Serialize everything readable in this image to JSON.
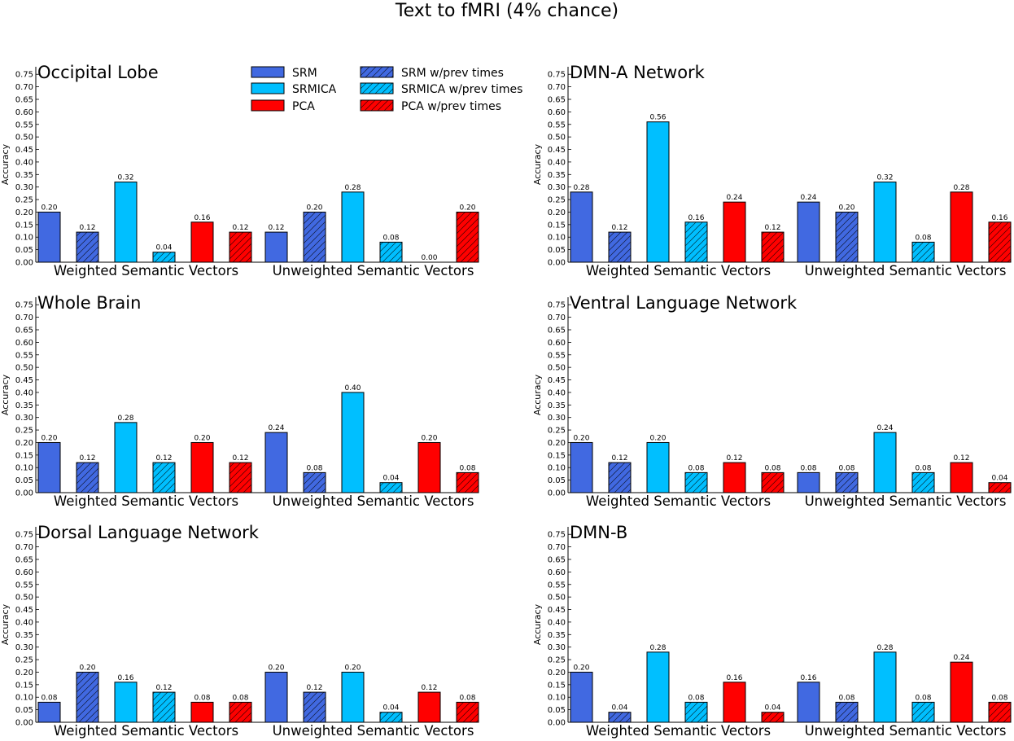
{
  "figure_title": "Text to fMRI (4% chance)",
  "colors": {
    "srm": "#4169e1",
    "srmica": "#00bfff",
    "pca": "#ff0000"
  },
  "legend": {
    "placement": "top of first panel, centered-right",
    "entries": [
      {
        "label": "SRM",
        "series": "SRM",
        "hatch": false
      },
      {
        "label": "SRMICA",
        "series": "SRMICA",
        "hatch": false
      },
      {
        "label": "PCA",
        "series": "PCA",
        "hatch": false
      },
      {
        "label": "SRM w/prev times",
        "series": "SRM",
        "hatch": true
      },
      {
        "label": "SRMICA w/prev times",
        "series": "SRMICA",
        "hatch": true
      },
      {
        "label": "PCA w/prev times",
        "series": "PCA",
        "hatch": true
      }
    ]
  },
  "chart_data": [
    {
      "type": "bar",
      "title": "Occipital Lobe",
      "ylabel": "Accuracy",
      "ylim": [
        0,
        0.78
      ],
      "yticks": [
        "0.00",
        "0.05",
        "0.10",
        "0.15",
        "0.20",
        "0.25",
        "0.30",
        "0.35",
        "0.40",
        "0.45",
        "0.50",
        "0.55",
        "0.60",
        "0.65",
        "0.70",
        "0.75"
      ],
      "groups": [
        "Weighted Semantic Vectors",
        "Unweighted Semantic Vectors"
      ],
      "series_order": [
        "SRM",
        "SRM w/prev times",
        "SRMICA",
        "SRMICA w/prev times",
        "PCA",
        "PCA w/prev times"
      ],
      "values": [
        [
          0.2,
          0.12,
          0.32,
          0.04,
          0.16,
          0.12
        ],
        [
          0.12,
          0.2,
          0.28,
          0.08,
          0.0,
          0.2
        ]
      ],
      "labels": [
        [
          "0.20",
          "0.12",
          "0.32",
          "0.04",
          "0.16",
          "0.12"
        ],
        [
          "0.12",
          "0.20",
          "0.28",
          "0.08",
          "0.00",
          "0.20"
        ]
      ]
    },
    {
      "type": "bar",
      "title": "DMN-A Network",
      "ylabel": "Accuracy",
      "ylim": [
        0,
        0.78
      ],
      "yticks": [
        "0.00",
        "0.05",
        "0.10",
        "0.15",
        "0.20",
        "0.25",
        "0.30",
        "0.35",
        "0.40",
        "0.45",
        "0.50",
        "0.55",
        "0.60",
        "0.65",
        "0.70",
        "0.75"
      ],
      "groups": [
        "Weighted Semantic Vectors",
        "Unweighted Semantic Vectors"
      ],
      "series_order": [
        "SRM",
        "SRM w/prev times",
        "SRMICA",
        "SRMICA w/prev times",
        "PCA",
        "PCA w/prev times"
      ],
      "values": [
        [
          0.28,
          0.12,
          0.56,
          0.16,
          0.24,
          0.12
        ],
        [
          0.24,
          0.2,
          0.32,
          0.08,
          0.28,
          0.16
        ]
      ],
      "labels": [
        [
          "0.28",
          "0.12",
          "0.56",
          "0.16",
          "0.24",
          "0.12"
        ],
        [
          "0.24",
          "0.20",
          "0.32",
          "0.08",
          "0.28",
          "0.16"
        ]
      ]
    },
    {
      "type": "bar",
      "title": "Whole Brain",
      "ylabel": "Accuracy",
      "ylim": [
        0,
        0.78
      ],
      "yticks": [
        "0.00",
        "0.05",
        "0.10",
        "0.15",
        "0.20",
        "0.25",
        "0.30",
        "0.35",
        "0.40",
        "0.45",
        "0.50",
        "0.55",
        "0.60",
        "0.65",
        "0.70",
        "0.75"
      ],
      "groups": [
        "Weighted Semantic Vectors",
        "Unweighted Semantic Vectors"
      ],
      "series_order": [
        "SRM",
        "SRM w/prev times",
        "SRMICA",
        "SRMICA w/prev times",
        "PCA",
        "PCA w/prev times"
      ],
      "values": [
        [
          0.2,
          0.12,
          0.28,
          0.12,
          0.2,
          0.12
        ],
        [
          0.24,
          0.08,
          0.4,
          0.04,
          0.2,
          0.08
        ]
      ],
      "labels": [
        [
          "0.20",
          "0.12",
          "0.28",
          "0.12",
          "0.20",
          "0.12"
        ],
        [
          "0.24",
          "0.08",
          "0.40",
          "0.04",
          "0.20",
          "0.08"
        ]
      ]
    },
    {
      "type": "bar",
      "title": "Ventral Language Network",
      "ylabel": "Accuracy",
      "ylim": [
        0,
        0.78
      ],
      "yticks": [
        "0.00",
        "0.05",
        "0.10",
        "0.15",
        "0.20",
        "0.25",
        "0.30",
        "0.35",
        "0.40",
        "0.45",
        "0.50",
        "0.55",
        "0.60",
        "0.65",
        "0.70",
        "0.75"
      ],
      "groups": [
        "Weighted Semantic Vectors",
        "Unweighted Semantic Vectors"
      ],
      "series_order": [
        "SRM",
        "SRM w/prev times",
        "SRMICA",
        "SRMICA w/prev times",
        "PCA",
        "PCA w/prev times"
      ],
      "values": [
        [
          0.2,
          0.12,
          0.2,
          0.08,
          0.12,
          0.08
        ],
        [
          0.08,
          0.08,
          0.24,
          0.08,
          0.12,
          0.04
        ]
      ],
      "labels": [
        [
          "0.20",
          "0.12",
          "0.20",
          "0.08",
          "0.12",
          "0.08"
        ],
        [
          "0.08",
          "0.08",
          "0.24",
          "0.08",
          "0.12",
          "0.04"
        ]
      ]
    },
    {
      "type": "bar",
      "title": "Dorsal Language Network",
      "ylabel": "Accuracy",
      "ylim": [
        0,
        0.78
      ],
      "yticks": [
        "0.00",
        "0.05",
        "0.10",
        "0.15",
        "0.20",
        "0.25",
        "0.30",
        "0.35",
        "0.40",
        "0.45",
        "0.50",
        "0.55",
        "0.60",
        "0.65",
        "0.70",
        "0.75"
      ],
      "groups": [
        "Weighted Semantic Vectors",
        "Unweighted Semantic Vectors"
      ],
      "series_order": [
        "SRM",
        "SRM w/prev times",
        "SRMICA",
        "SRMICA w/prev times",
        "PCA",
        "PCA w/prev times"
      ],
      "values": [
        [
          0.08,
          0.2,
          0.16,
          0.12,
          0.08,
          0.08
        ],
        [
          0.2,
          0.12,
          0.2,
          0.04,
          0.12,
          0.08
        ]
      ],
      "labels": [
        [
          "0.08",
          "0.20",
          "0.16",
          "0.12",
          "0.08",
          "0.08"
        ],
        [
          "0.20",
          "0.12",
          "0.20",
          "0.04",
          "0.12",
          "0.08"
        ]
      ]
    },
    {
      "type": "bar",
      "title": "DMN-B",
      "ylabel": "Accuracy",
      "ylim": [
        0,
        0.78
      ],
      "yticks": [
        "0.00",
        "0.05",
        "0.10",
        "0.15",
        "0.20",
        "0.25",
        "0.30",
        "0.35",
        "0.40",
        "0.45",
        "0.50",
        "0.55",
        "0.60",
        "0.65",
        "0.70",
        "0.75"
      ],
      "groups": [
        "Weighted Semantic Vectors",
        "Unweighted Semantic Vectors"
      ],
      "series_order": [
        "SRM",
        "SRM w/prev times",
        "SRMICA",
        "SRMICA w/prev times",
        "PCA",
        "PCA w/prev times"
      ],
      "values": [
        [
          0.2,
          0.04,
          0.28,
          0.08,
          0.16,
          0.04
        ],
        [
          0.16,
          0.08,
          0.28,
          0.08,
          0.24,
          0.08
        ]
      ],
      "labels": [
        [
          "0.20",
          "0.04",
          "0.28",
          "0.08",
          "0.16",
          "0.04"
        ],
        [
          "0.16",
          "0.08",
          "0.28",
          "0.08",
          "0.24",
          "0.08"
        ]
      ]
    }
  ]
}
